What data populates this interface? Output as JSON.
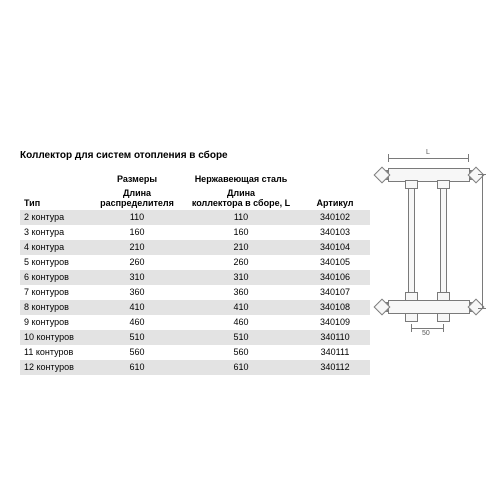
{
  "title": "Коллектор для систем отопления в сборе",
  "table": {
    "group_headers": {
      "sizes": "Размеры",
      "material": "Нержавеющая сталь"
    },
    "columns": {
      "type": "Тип",
      "dist_len": "Длина\nраспределителя",
      "assy_len": "Длина\nколлектора в сборе, L",
      "article": "Артикул"
    },
    "rows": [
      {
        "type": "2 контура",
        "dist": "110",
        "assy": "110",
        "art": "340102",
        "stripe": true
      },
      {
        "type": "3 контура",
        "dist": "160",
        "assy": "160",
        "art": "340103",
        "stripe": false
      },
      {
        "type": "4 контура",
        "dist": "210",
        "assy": "210",
        "art": "340104",
        "stripe": true
      },
      {
        "type": "5 контуров",
        "dist": "260",
        "assy": "260",
        "art": "340105",
        "stripe": false
      },
      {
        "type": "6 контуров",
        "dist": "310",
        "assy": "310",
        "art": "340106",
        "stripe": true
      },
      {
        "type": "7 контуров",
        "dist": "360",
        "assy": "360",
        "art": "340107",
        "stripe": false
      },
      {
        "type": "8 контуров",
        "dist": "410",
        "assy": "410",
        "art": "340108",
        "stripe": true
      },
      {
        "type": "9 контуров",
        "dist": "460",
        "assy": "460",
        "art": "340109",
        "stripe": false
      },
      {
        "type": "10 контуров",
        "dist": "510",
        "assy": "510",
        "art": "340110",
        "stripe": true
      },
      {
        "type": "11 контуров",
        "dist": "560",
        "assy": "560",
        "art": "340111",
        "stripe": false
      },
      {
        "type": "12 контуров",
        "dist": "610",
        "assy": "610",
        "art": "340112",
        "stripe": true
      }
    ]
  },
  "diagram": {
    "label_L": "L",
    "label_50": "50"
  },
  "style": {
    "stripe_color": "#e3e3e3",
    "text_color": "#000000",
    "background": "#ffffff",
    "font_size_title": 10,
    "font_size_body": 9,
    "diagram_stroke": "#7a7a7a"
  }
}
